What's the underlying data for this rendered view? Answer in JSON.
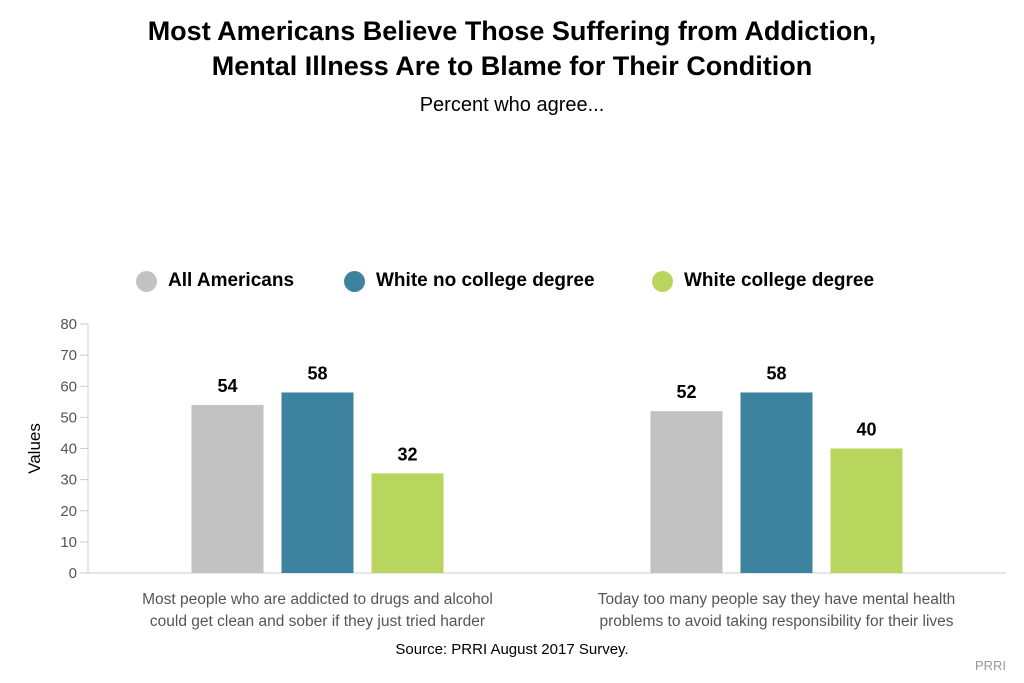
{
  "title_lines": [
    "Most Americans Believe Those Suffering from Addiction,",
    "Mental Illness Are to Blame for Their Condition"
  ],
  "subtitle": "Percent who agree...",
  "source": "Source: PRRI August 2017 Survey.",
  "credit": "PRRI",
  "chart_data": {
    "type": "bar",
    "title": "Most Americans Believe Those Suffering from Addiction, Mental Illness Are to Blame for Their Condition",
    "subtitle": "Percent who agree...",
    "xlabel": "",
    "ylabel": "Values",
    "ylim": [
      0,
      80
    ],
    "yticks": [
      0,
      10,
      20,
      30,
      40,
      50,
      60,
      70,
      80
    ],
    "grid": false,
    "legend_position": "top",
    "categories": [
      [
        "Most people who are addicted to drugs and alcohol",
        "could get clean and sober if they just tried harder"
      ],
      [
        "Today too many people say they have mental health",
        "problems to avoid taking responsibility for their lives"
      ]
    ],
    "series": [
      {
        "name": "All Americans",
        "color": "#c2c2c2",
        "values": [
          54,
          52
        ]
      },
      {
        "name": "White no college degree",
        "color": "#3d83a0",
        "values": [
          58,
          58
        ]
      },
      {
        "name": "White college degree",
        "color": "#b8d55e",
        "values": [
          32,
          40
        ]
      }
    ]
  }
}
